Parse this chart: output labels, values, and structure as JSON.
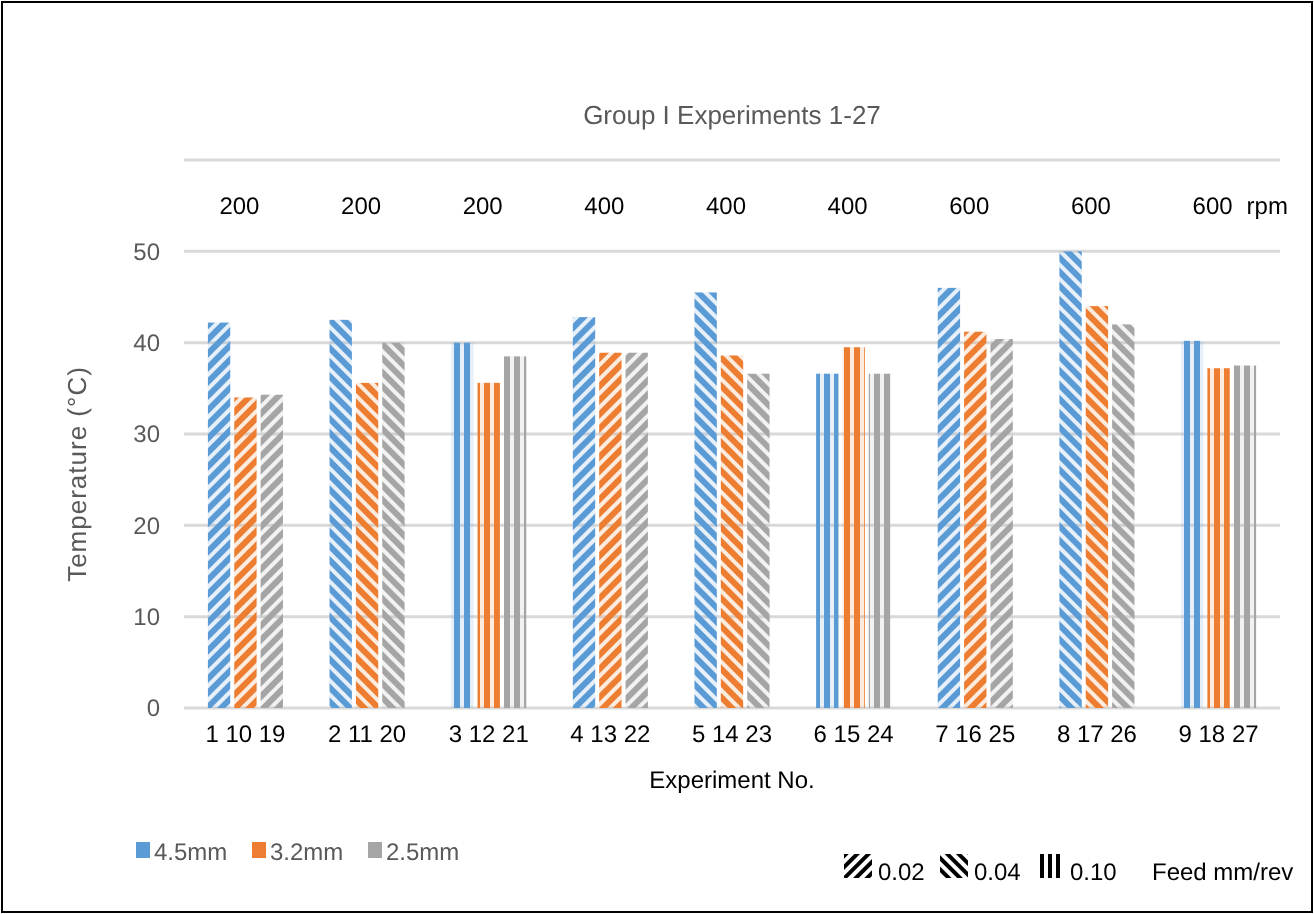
{
  "chart_data": {
    "type": "bar",
    "title": "Group I Experiments 1-27",
    "xlabel": "Experiment No.",
    "ylabel": "Temperature (°C)",
    "categories": [
      "1 10 19",
      "2 11 20",
      "3 12 21",
      "4 13 22",
      "5 14 23",
      "6 15 24",
      "7 16 25",
      "8 17 26",
      "9 18 27"
    ],
    "series": [
      {
        "name": "4.5mm",
        "color": "#5b9bd5",
        "values": [
          42.2,
          42.5,
          40,
          42.8,
          45.5,
          36.6,
          46,
          50,
          40.2
        ]
      },
      {
        "name": "3.2mm",
        "color": "#ed7d31",
        "values": [
          34,
          35.6,
          35.6,
          38.9,
          38.6,
          39.5,
          41.2,
          44,
          37.2
        ]
      },
      {
        "name": "2.5mm",
        "color": "#a5a5a5",
        "values": [
          34.3,
          40,
          38.5,
          38.9,
          36.6,
          36.6,
          40.4,
          42,
          37.5
        ]
      }
    ],
    "ylim": [
      0,
      60
    ],
    "yticks": [
      0,
      10,
      20,
      30,
      40,
      50,
      {
        "value": 60,
        "label": null
      }
    ],
    "grid": "y",
    "legend": "bottom left",
    "annotations": [
      "200",
      "200",
      "200",
      "400",
      "400",
      "400",
      "600",
      "600",
      "600",
      "rpm",
      "0.02",
      "0.04",
      "0.10",
      "Feed mm/rev"
    ]
  }
}
